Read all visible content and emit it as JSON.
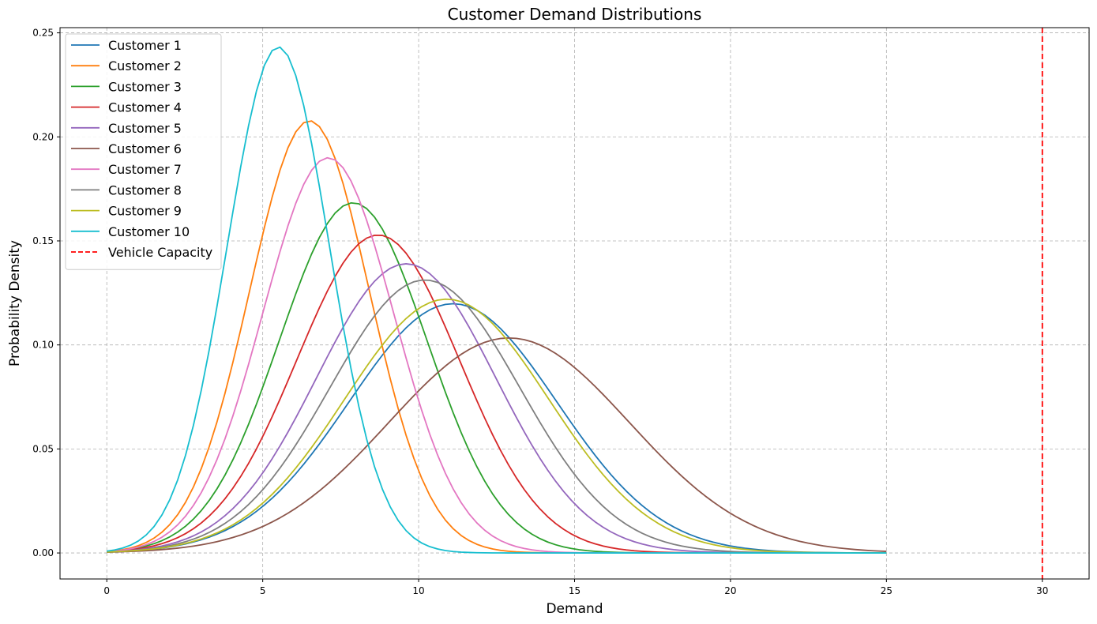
{
  "chart_data": {
    "type": "line",
    "title": "Customer Demand Distributions",
    "xlabel": "Demand",
    "ylabel": "Probability Density",
    "xlim": [
      -1.5,
      31.5
    ],
    "ylim": [
      -0.0125,
      0.2525
    ],
    "xticks": [
      0,
      5,
      10,
      15,
      20,
      25,
      30
    ],
    "yticks": [
      0.0,
      0.05,
      0.1,
      0.15,
      0.2,
      0.25
    ],
    "ytick_labels": [
      "0.00",
      "0.05",
      "0.10",
      "0.15",
      "0.20",
      "0.25"
    ],
    "grid": true,
    "grid_style": "dashed",
    "legend_position": "top-left",
    "x_range": [
      0,
      25
    ],
    "series": [
      {
        "name": "Customer 1",
        "color": "#1f77b4",
        "distribution": "normal",
        "mean": 11.1,
        "std": 3.33
      },
      {
        "name": "Customer 2",
        "color": "#ff7f0e",
        "distribution": "normal",
        "mean": 6.5,
        "std": 1.92
      },
      {
        "name": "Customer 3",
        "color": "#2ca02c",
        "distribution": "normal",
        "mean": 7.9,
        "std": 2.37
      },
      {
        "name": "Customer 4",
        "color": "#d62728",
        "distribution": "normal",
        "mean": 8.7,
        "std": 2.61
      },
      {
        "name": "Customer 5",
        "color": "#9467bd",
        "distribution": "normal",
        "mean": 9.6,
        "std": 2.87
      },
      {
        "name": "Customer 6",
        "color": "#8c564b",
        "distribution": "normal",
        "mean": 12.9,
        "std": 3.86
      },
      {
        "name": "Customer 7",
        "color": "#e377c2",
        "distribution": "normal",
        "mean": 7.1,
        "std": 2.1
      },
      {
        "name": "Customer 8",
        "color": "#7f7f7f",
        "distribution": "normal",
        "mean": 10.2,
        "std": 3.04
      },
      {
        "name": "Customer 9",
        "color": "#bcbd22",
        "distribution": "normal",
        "mean": 10.9,
        "std": 3.27
      },
      {
        "name": "Customer 10",
        "color": "#17becf",
        "distribution": "normal",
        "mean": 5.5,
        "std": 1.64
      }
    ],
    "reference_lines": [
      {
        "name": "Vehicle Capacity",
        "orientation": "vertical",
        "x": 30,
        "color": "#ff0000",
        "style": "dashed"
      }
    ]
  }
}
